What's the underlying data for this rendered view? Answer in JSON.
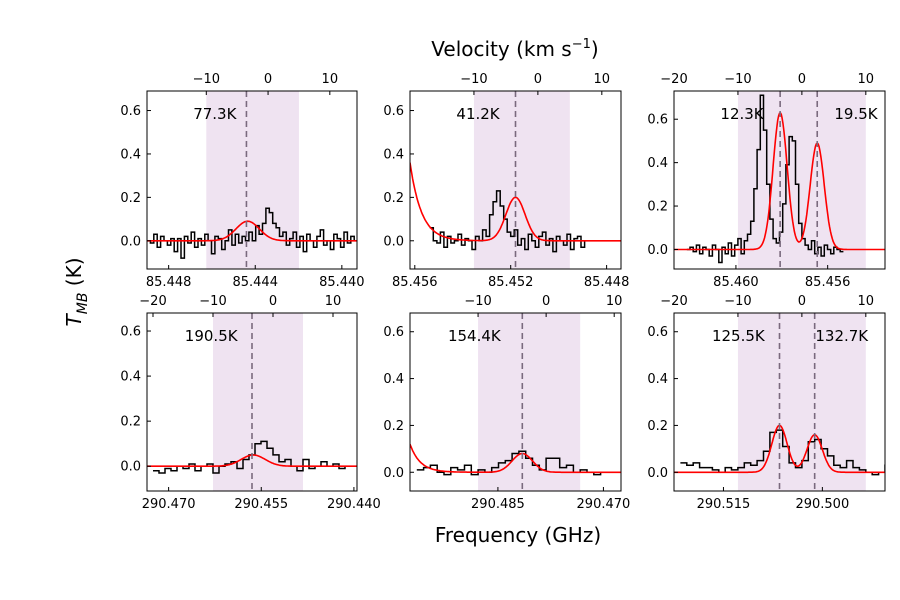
{
  "figure": {
    "top_label_prefix": "Velocity (km s",
    "top_label_exp": "−1",
    "top_label_suffix": ")",
    "bottom_label": "Frequency (GHz)",
    "y_label_main": "T",
    "y_label_sub": "MB",
    "y_label_unit": " (K)"
  },
  "chart_data": [
    {
      "type": "line",
      "id": "p1",
      "freq_range": [
        85.449,
        85.4393
      ],
      "vel_range": [
        -19.6,
        14.4
      ],
      "ylim": [
        -0.13,
        0.69
      ],
      "x_ticks": [
        85.448,
        85.444,
        85.44
      ],
      "x_tick_labels": [
        "85.448",
        "85.444",
        "85.440"
      ],
      "vel_ticks": [
        -10,
        0,
        10
      ],
      "vel_tick_labels": [
        "−10",
        "0",
        "10"
      ],
      "y_ticks": [
        0.0,
        0.2,
        0.4,
        0.6
      ],
      "y_tick_labels": [
        "0.0",
        "0.2",
        "0.4",
        "0.6"
      ],
      "shaded_vel": [
        -10,
        5
      ],
      "vlines_vel": [
        -3.5
      ],
      "annotations": [
        "77.3K"
      ],
      "fit": {
        "gaussians": [
          {
            "v0": -3.3,
            "amp": 0.09,
            "sigma": 1.9
          }
        ],
        "exp": null
      },
      "spectrum": {
        "vstart": -19.6,
        "step": 0.55,
        "values": [
          0.0,
          -0.01,
          0.03,
          -0.03,
          0.02,
          0.0,
          -0.02,
          0.01,
          -0.05,
          0.01,
          -0.08,
          0.02,
          -0.01,
          0.04,
          -0.03,
          0.01,
          -0.02,
          0.03,
          0.0,
          -0.06,
          0.02,
          0.01,
          -0.04,
          0.0,
          0.05,
          -0.02,
          0.03,
          -0.01,
          0.02,
          0.0,
          0.04,
          0.0,
          0.07,
          0.03,
          0.08,
          0.15,
          0.13,
          0.08,
          0.06,
          0.02,
          0.04,
          -0.02,
          0.01,
          0.04,
          -0.03,
          0.02,
          -0.05,
          0.03,
          0.0,
          -0.03,
          0.02,
          0.05,
          -0.02,
          0.0,
          -0.04,
          0.03,
          0.01,
          -0.03,
          0.04,
          -0.01,
          0.02,
          0.0,
          -0.02
        ]
      }
    },
    {
      "type": "line",
      "id": "p2",
      "freq_range": [
        85.4562,
        85.4474
      ],
      "vel_range": [
        -20.0,
        13.0
      ],
      "ylim": [
        -0.13,
        0.69
      ],
      "x_ticks": [
        85.456,
        85.452,
        85.448
      ],
      "x_tick_labels": [
        "85.456",
        "85.452",
        "85.448"
      ],
      "vel_ticks": [
        -10,
        0,
        10
      ],
      "vel_tick_labels": [
        "−10",
        "0",
        "10"
      ],
      "y_ticks": [
        0.0,
        0.2,
        0.4,
        0.6
      ],
      "y_tick_labels": [
        "0.0",
        "0.2",
        "0.4",
        "0.6"
      ],
      "shaded_vel": [
        -10,
        5
      ],
      "vlines_vel": [
        -3.5
      ],
      "annotations": [
        "41.2K"
      ],
      "fit": {
        "gaussians": [
          {
            "v0": -3.5,
            "amp": 0.2,
            "sigma": 1.5
          }
        ],
        "exp": {
          "amp": 0.36,
          "scale": 1.8
        }
      },
      "spectrum": {
        "vstart": -16.9,
        "step": 0.55,
        "values": [
          0.06,
          0.0,
          -0.01,
          0.04,
          -0.03,
          0.02,
          -0.01,
          0.0,
          0.03,
          -0.02,
          0.01,
          0.0,
          -0.04,
          0.02,
          0.0,
          0.05,
          0.02,
          0.12,
          0.18,
          0.23,
          0.16,
          0.1,
          0.04,
          0.02,
          0.05,
          -0.02,
          0.01,
          -0.04,
          0.03,
          0.0,
          -0.03,
          0.02,
          0.04,
          -0.02,
          0.01,
          -0.05,
          0.02,
          0.0,
          -0.02,
          0.03,
          -0.04,
          0.01,
          0.02,
          -0.03,
          0.0
        ]
      }
    },
    {
      "type": "line",
      "id": "p3",
      "freq_range": [
        85.4627,
        85.4535
      ],
      "vel_range": [
        -20.0,
        13.0
      ],
      "ylim": [
        -0.09,
        0.73
      ],
      "x_ticks": [
        85.46,
        85.456
      ],
      "x_tick_labels": [
        "85.460",
        "85.456"
      ],
      "vel_ticks": [
        -20,
        -10,
        0,
        10
      ],
      "vel_tick_labels": [
        "−20",
        "−10",
        "0",
        "10"
      ],
      "y_ticks": [
        0.0,
        0.2,
        0.4,
        0.6
      ],
      "y_tick_labels": [
        "0.0",
        "0.2",
        "0.4",
        "0.6"
      ],
      "shaded_vel": [
        -10,
        10
      ],
      "vlines_vel": [
        -3.4,
        2.4
      ],
      "annotations": [
        "12.3K",
        "19.5K"
      ],
      "fit": {
        "gaussians": [
          {
            "v0": -3.4,
            "amp": 0.63,
            "sigma": 1.1
          },
          {
            "v0": 2.4,
            "amp": 0.49,
            "sigma": 1.1
          }
        ],
        "exp": null
      },
      "spectrum": {
        "vstart": -18.0,
        "step": 0.5,
        "values": [
          0.0,
          0.01,
          -0.01,
          0.02,
          -0.02,
          0.01,
          0.0,
          -0.03,
          0.02,
          0.0,
          -0.06,
          0.01,
          -0.02,
          0.03,
          -0.03,
          0.02,
          0.05,
          -0.02,
          0.04,
          0.07,
          0.13,
          0.28,
          0.46,
          0.71,
          0.55,
          0.3,
          0.14,
          0.05,
          0.03,
          0.08,
          0.21,
          0.39,
          0.52,
          0.5,
          0.3,
          0.12,
          0.05,
          0.02,
          0.0,
          0.04,
          -0.02,
          0.01,
          -0.03,
          0.02,
          0.0,
          -0.02,
          0.01,
          0.0,
          -0.01
        ]
      }
    },
    {
      "type": "line",
      "id": "p4",
      "freq_range": [
        290.4735,
        290.4395
      ],
      "vel_range": [
        -21.0,
        14.0
      ],
      "ylim": [
        -0.11,
        0.68
      ],
      "x_ticks": [
        290.47,
        290.455,
        290.44
      ],
      "x_tick_labels": [
        "290.470",
        "290.455",
        "290.440"
      ],
      "vel_ticks": [
        -20,
        -10,
        0,
        10
      ],
      "vel_tick_labels": [
        "−20",
        "−10",
        "0",
        "10"
      ],
      "y_ticks": [
        0.0,
        0.2,
        0.4,
        0.6
      ],
      "y_tick_labels": [
        "0.0",
        "0.2",
        "0.4",
        "0.6"
      ],
      "shaded_vel": [
        -10,
        5
      ],
      "vlines_vel": [
        -3.5
      ],
      "annotations": [
        "190.5K"
      ],
      "fit": {
        "gaussians": [
          {
            "v0": -3.3,
            "amp": 0.05,
            "sigma": 2.0
          }
        ],
        "exp": null
      },
      "spectrum": {
        "vstart": -20.0,
        "step": 1.0,
        "values": [
          -0.02,
          -0.03,
          -0.01,
          -0.02,
          0.0,
          -0.01,
          0.01,
          -0.02,
          0.0,
          0.01,
          -0.03,
          0.0,
          0.01,
          0.02,
          -0.01,
          0.03,
          0.05,
          0.1,
          0.11,
          0.08,
          0.05,
          0.02,
          0.03,
          0.0,
          -0.02,
          0.03,
          -0.01,
          0.0,
          0.02,
          0.0,
          0.01,
          -0.01,
          0.0,
          0.0
        ]
      }
    },
    {
      "type": "line",
      "id": "p5",
      "freq_range": [
        290.4975,
        290.4675
      ],
      "vel_range": [
        -20.0,
        11.0
      ],
      "ylim": [
        -0.08,
        0.68
      ],
      "x_ticks": [
        290.485,
        290.47
      ],
      "x_tick_labels": [
        "290.485",
        "290.470"
      ],
      "vel_ticks": [
        -10,
        0,
        10
      ],
      "vel_tick_labels": [
        "−10",
        "0",
        "10"
      ],
      "y_ticks": [
        0.0,
        0.2,
        0.4,
        0.6
      ],
      "y_tick_labels": [
        "0.0",
        "0.2",
        "0.4",
        "0.6"
      ],
      "shaded_vel": [
        -10,
        5
      ],
      "vlines_vel": [
        -3.5
      ],
      "annotations": [
        "154.4K"
      ],
      "fit": {
        "gaussians": [
          {
            "v0": -3.5,
            "amp": 0.08,
            "sigma": 1.5
          }
        ],
        "exp": {
          "amp": 0.12,
          "scale": 1.5
        }
      },
      "spectrum": {
        "vstart": -19.0,
        "step": 1.0,
        "values": [
          0.01,
          0.02,
          0.03,
          0.0,
          -0.01,
          0.02,
          0.01,
          0.03,
          -0.01,
          0.01,
          0.0,
          0.02,
          0.04,
          0.05,
          0.08,
          0.09,
          0.06,
          0.03,
          0.01,
          0.06,
          0.06,
          0.02,
          0.03,
          0.0,
          0.01,
          0.0,
          -0.01,
          0.0,
          0.0,
          0.0
        ]
      }
    },
    {
      "type": "line",
      "id": "p6",
      "freq_range": [
        290.5225,
        290.4905
      ],
      "vel_range": [
        -20.0,
        13.0
      ],
      "ylim": [
        -0.08,
        0.68
      ],
      "x_ticks": [
        290.515,
        290.5
      ],
      "x_tick_labels": [
        "290.515",
        "290.500"
      ],
      "vel_ticks": [
        -20,
        -10,
        0,
        10
      ],
      "vel_tick_labels": [
        "−20",
        "−10",
        "0",
        "10"
      ],
      "y_ticks": [
        0.0,
        0.2,
        0.4,
        0.6
      ],
      "y_tick_labels": [
        "0.0",
        "0.2",
        "0.4",
        "0.6"
      ],
      "shaded_vel": [
        -10,
        10
      ],
      "vlines_vel": [
        -3.5,
        2.0
      ],
      "annotations": [
        "125.5K",
        "132.7K"
      ],
      "fit": {
        "gaussians": [
          {
            "v0": -3.5,
            "amp": 0.2,
            "sigma": 1.2
          },
          {
            "v0": 2.0,
            "amp": 0.16,
            "sigma": 1.2
          }
        ],
        "exp": null
      },
      "spectrum": {
        "vstart": -19.0,
        "step": 1.0,
        "values": [
          0.04,
          0.03,
          0.04,
          0.02,
          0.02,
          0.01,
          0.0,
          0.02,
          0.01,
          0.02,
          0.04,
          0.03,
          0.05,
          0.09,
          0.17,
          0.18,
          0.11,
          0.04,
          0.02,
          0.05,
          0.13,
          0.14,
          0.1,
          0.07,
          0.03,
          0.02,
          0.05,
          0.02,
          0.01,
          0.0,
          -0.01,
          0.0,
          0.03,
          0.0
        ]
      }
    }
  ]
}
